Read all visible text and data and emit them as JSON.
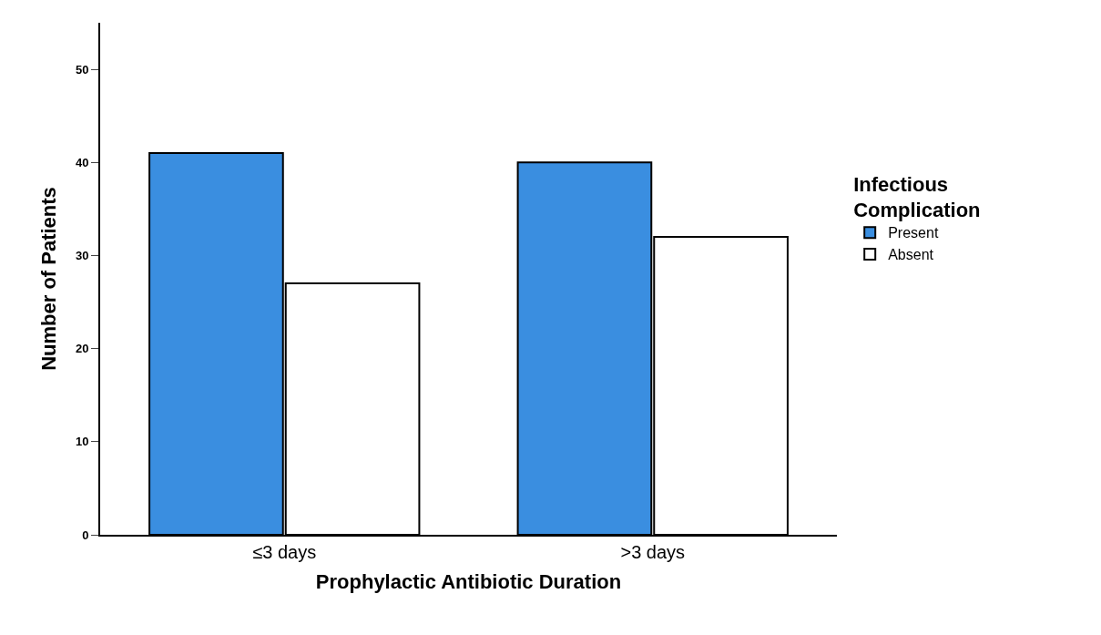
{
  "chart_data": {
    "type": "bar",
    "xlabel": "Prophylactic Antibiotic Duration",
    "ylabel": "Number of Patients",
    "legend_title": "Infectious Complication",
    "categories": [
      "≤3 days",
      ">3 days"
    ],
    "series": [
      {
        "name": "Present",
        "color": "#3a8ee0",
        "values": [
          41,
          40
        ]
      },
      {
        "name": "Absent",
        "color": "#ffffff",
        "values": [
          27,
          32
        ]
      }
    ],
    "ylim": [
      0,
      55
    ],
    "yticks": [
      0,
      10,
      20,
      30,
      40,
      50
    ],
    "legend": "right"
  }
}
